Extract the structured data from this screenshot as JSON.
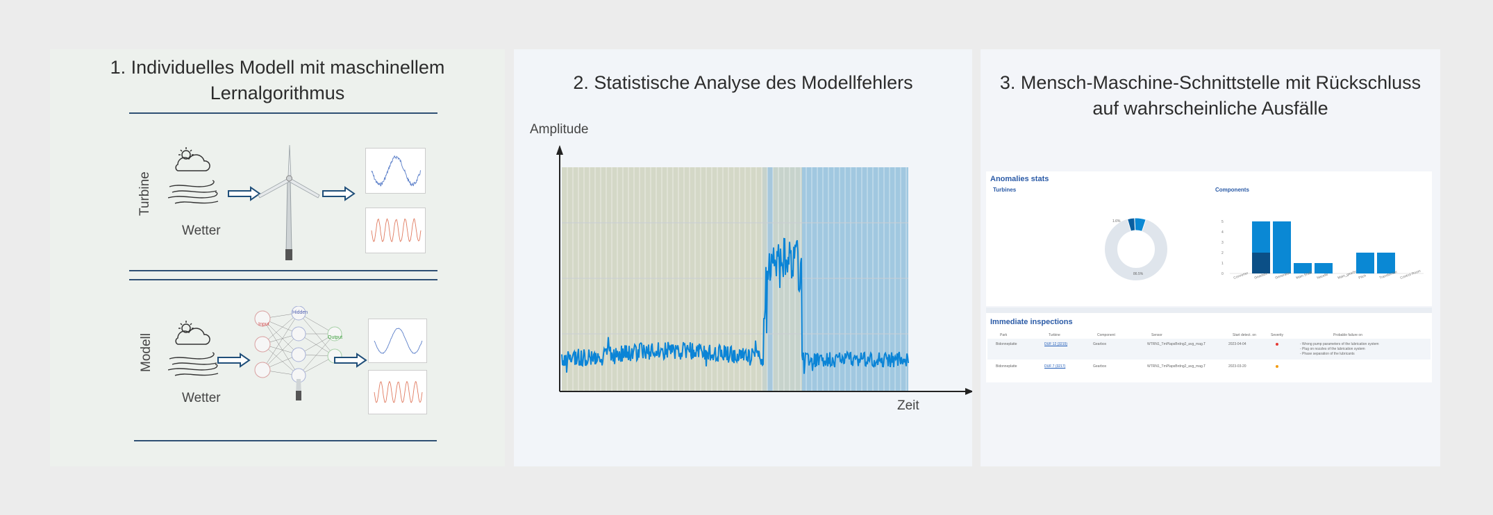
{
  "panel1": {
    "title_line1": "1. Individuelles Modell mit maschinellem",
    "title_line2": "Lernalgorithmus",
    "top": {
      "side_label": "Turbine",
      "weather_label": "Wetter"
    },
    "bottom": {
      "side_label": "Modell",
      "weather_label": "Wetter",
      "nn_input": "Input",
      "nn_hidden": "Hidden",
      "nn_output": "Output"
    }
  },
  "panel2": {
    "title": "2. Statistische Analyse des Modellfehlers",
    "ylabel": "Amplitude",
    "xlabel": "Zeit"
  },
  "panel3": {
    "title_line1": "3. Mensch-Maschine-Schnittstelle mit Rückschluss",
    "title_line2": "auf wahrscheinliche Ausfälle",
    "stats_title": "Anomalies stats",
    "turbines_label": "Turbines",
    "components_label": "Components",
    "donut": {
      "small_label": "1.6%",
      "big_label": "86.5%"
    },
    "bars": {
      "yticks": [
        "0",
        "1",
        "2",
        "3",
        "4",
        "5"
      ],
      "categories": [
        "Converter",
        "Gearbox",
        "Generator",
        "Main Shaft",
        "Nacelle",
        "Main_gearbox",
        "Pitch",
        "Transformer",
        "Control Room"
      ],
      "values": [
        0,
        5,
        5,
        1,
        1,
        0,
        2,
        2,
        0
      ],
      "secondary": [
        0,
        2,
        0,
        0,
        0,
        0,
        0,
        0,
        0
      ]
    },
    "inspections": {
      "title": "Immediate inspections",
      "columns": [
        "Park",
        "Turbine",
        "Component",
        "Sensor",
        "Start detect. on",
        "Severity",
        "Probable failure on"
      ],
      "rows": [
        {
          "park": "Bidonneplatte",
          "turbine": "DUF 12 (3215)",
          "component": "Gearbox",
          "sensor": "WTRN1_TmPlapsBrdng2_avg_mag.T",
          "date": "2023-04-04",
          "failures": [
            "- Wrong pump parameters of the lubrication system",
            "- Plug on nozzles of the lubrication system",
            "- Phase separation of the lubricants"
          ]
        },
        {
          "park": "Bidonneplatte",
          "turbine": "DUF 7 (3217)",
          "component": "Gearbox",
          "sensor": "WTRN1_TmPlapsBrdng2_avg_mag.T",
          "date": "2023-03-20",
          "failures": []
        }
      ]
    }
  },
  "colors": {
    "accent": "#0a88d4",
    "dark_blue": "#1a4f7a",
    "signal": "#0b84d6",
    "normal_bg": "#d4d8c7",
    "anomaly_bg": "#a1c8e0",
    "severity_red": "#e53935",
    "severity_orange": "#f39c12"
  }
}
